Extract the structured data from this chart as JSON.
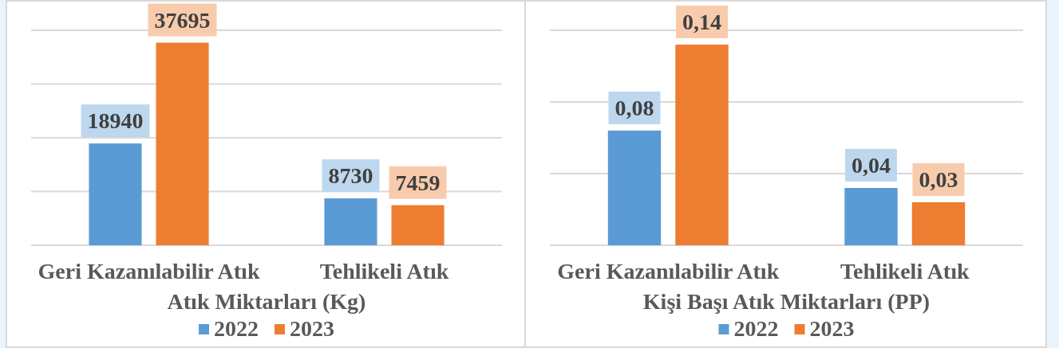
{
  "chart_data": [
    {
      "type": "bar",
      "xlabel": "Atık Miktarları (Kg)",
      "categories": [
        "Geri Kazanılabilir Atık",
        "Tehlikeli Atık"
      ],
      "series": [
        {
          "name": "2022",
          "color": "#5b9bd5",
          "values": [
            18940,
            8730
          ]
        },
        {
          "name": "2023",
          "color": "#ed7d31",
          "values": [
            37695,
            7459
          ]
        }
      ],
      "ylim": [
        0,
        40000
      ],
      "yticks": [
        {
          "value": 0,
          "label": null
        },
        {
          "value": 10000,
          "label": null
        },
        {
          "value": 20000,
          "label": null
        },
        {
          "value": 30000,
          "label": null
        },
        {
          "value": 40000,
          "label": null
        }
      ],
      "grid": "y",
      "tick_labels": "x",
      "legend": "bottom",
      "data_labels": true
    },
    {
      "type": "bar",
      "xlabel": "Kişi Başı Atık Miktarları (PP)",
      "categories": [
        "Geri Kazanılabilir Atık",
        "Tehlikeli Atık"
      ],
      "series": [
        {
          "name": "2022",
          "color": "#5b9bd5",
          "values": [
            0.08,
            0.04
          ],
          "value_labels": [
            "0,08",
            "0,04"
          ]
        },
        {
          "name": "2023",
          "color": "#ed7d31",
          "values": [
            0.14,
            0.03
          ],
          "value_labels": [
            "0,14",
            "0,03"
          ]
        }
      ],
      "ylim": [
        0,
        0.15
      ],
      "yticks": [
        {
          "value": 0,
          "label": null
        },
        {
          "value": 0.05,
          "label": null
        },
        {
          "value": 0.1,
          "label": null
        },
        {
          "value": 0.15,
          "label": null
        }
      ],
      "grid": "y",
      "tick_labels": "x",
      "legend": "bottom"
    }
  ]
}
